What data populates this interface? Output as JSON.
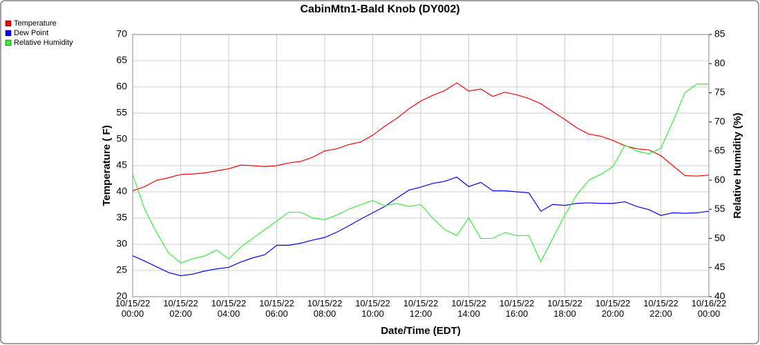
{
  "chart_data": {
    "type": "line",
    "title": "CabinMtn1-Bald Knob (DY002)",
    "xlabel": "Date/Time (EDT)",
    "ylabel": "Temperature ( F)",
    "y2label": "Relative Humidity (%)",
    "grid": true,
    "legend": "top-left",
    "xlim": [
      0,
      24
    ],
    "xticks": [
      {
        "value": 0,
        "label": "10/15/22 00:00"
      },
      {
        "value": 2,
        "label": "10/15/22 02:00"
      },
      {
        "value": 4,
        "label": "10/15/22 04:00"
      },
      {
        "value": 6,
        "label": "10/15/22 06:00"
      },
      {
        "value": 8,
        "label": "10/15/22 08:00"
      },
      {
        "value": 10,
        "label": "10/15/22 10:00"
      },
      {
        "value": 12,
        "label": "10/15/22 12:00"
      },
      {
        "value": 14,
        "label": "10/15/22 14:00"
      },
      {
        "value": 16,
        "label": "10/15/22 16:00"
      },
      {
        "value": 18,
        "label": "10/15/22 18:00"
      },
      {
        "value": 20,
        "label": "10/15/22 20:00"
      },
      {
        "value": 22,
        "label": "10/15/22 22:00"
      },
      {
        "value": 24,
        "label": "10/16/22 00:00"
      }
    ],
    "ylim": [
      20,
      70
    ],
    "yticks": [
      20,
      25,
      30,
      35,
      40,
      45,
      50,
      55,
      60,
      65,
      70
    ],
    "y2lim": [
      40,
      85
    ],
    "y2ticks": [
      40,
      45,
      50,
      55,
      60,
      65,
      70,
      75,
      80,
      85
    ],
    "x": [
      0,
      0.5,
      1,
      1.5,
      2,
      2.5,
      3,
      3.5,
      4,
      4.5,
      5,
      5.5,
      6,
      6.5,
      7,
      7.5,
      8,
      8.5,
      9,
      9.5,
      10,
      10.5,
      11,
      11.5,
      12,
      12.5,
      13,
      13.5,
      14,
      14.5,
      15,
      15.5,
      16,
      16.5,
      17,
      17.5,
      18,
      18.5,
      19,
      19.5,
      20,
      20.5,
      21,
      21.5,
      22,
      22.5,
      23,
      23.5,
      24
    ],
    "series": [
      {
        "name": "Temperature",
        "color": "#ff0000",
        "values": [
          40.2,
          41,
          42.2,
          42.7,
          43.3,
          43.4,
          43.6,
          44,
          44.4,
          45.1,
          45,
          44.8,
          45,
          45.5,
          45.8,
          46.6,
          47.8,
          48.2,
          49,
          49.5,
          50.8,
          52.5,
          54,
          55.8,
          57.3,
          58.4,
          59.3,
          60.8,
          59.2,
          59.6,
          58.2,
          59,
          58.5,
          57.8,
          56.8,
          55.3,
          53.8,
          52.2,
          51,
          50.6,
          49.8,
          48.8,
          48.2,
          48,
          46.9,
          45,
          43.1,
          43,
          43.2
        ]
      },
      {
        "name": "Dew Point",
        "color": "#0000ff",
        "values": [
          27.8,
          26.8,
          25.7,
          24.6,
          24,
          24.3,
          24.9,
          25.3,
          25.6,
          26.6,
          27.4,
          28,
          29.8,
          29.8,
          30.2,
          30.8,
          31.3,
          32.3,
          33.5,
          34.8,
          36,
          37.2,
          38.8,
          40.3,
          40.9,
          41.6,
          42,
          42.8,
          41,
          41.8,
          40.2,
          40.2,
          40,
          39.8,
          36.3,
          37.6,
          37.4,
          37.8,
          37.9,
          37.8,
          37.8,
          38.1,
          37.2,
          36.6,
          35.5,
          36,
          35.9,
          36,
          36.3
        ]
      },
      {
        "name": "Relative Humidity",
        "color": "#33ee33",
        "axis": "y2",
        "values": [
          61,
          55,
          51,
          47.5,
          45.8,
          46.5,
          47,
          48,
          46.5,
          48.5,
          50,
          51.5,
          53,
          54.5,
          54.5,
          53.5,
          53.2,
          54,
          55,
          55.8,
          56.5,
          55.6,
          56,
          55.5,
          55.8,
          53.5,
          51.5,
          50.5,
          53.5,
          50,
          50,
          51,
          50.5,
          50.5,
          46,
          50,
          54,
          57.5,
          60,
          61,
          62.3,
          66,
          65,
          64.5,
          65.5,
          70,
          75,
          76.5,
          76.5
        ]
      }
    ]
  }
}
